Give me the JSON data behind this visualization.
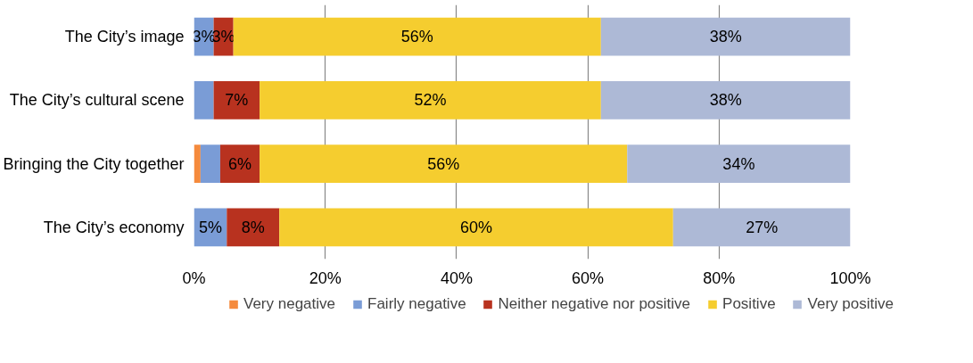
{
  "chart_data": {
    "type": "bar",
    "orientation": "horizontal",
    "stacked": true,
    "categories": [
      "The City’s image",
      "The City’s cultural scene",
      "Bringing the City together",
      "The City’s economy"
    ],
    "series": [
      {
        "name": "Very negative",
        "color": "#f58a3c",
        "values": [
          0,
          0,
          1,
          0
        ],
        "value_labels": [
          null,
          null,
          null,
          null
        ]
      },
      {
        "name": "Fairly negative",
        "color": "#7a9cd6",
        "values": [
          3,
          3,
          3,
          5
        ],
        "value_labels": [
          "3%",
          null,
          null,
          "5%"
        ]
      },
      {
        "name": "Neither negative nor positive",
        "color": "#b8321f",
        "values": [
          3,
          7,
          6,
          8
        ],
        "value_labels": [
          "3%",
          "7%",
          "6%",
          "8%"
        ]
      },
      {
        "name": "Positive",
        "color": "#f5cd2f",
        "values": [
          56,
          52,
          56,
          60
        ],
        "value_labels": [
          "56%",
          "52%",
          "56%",
          "60%"
        ]
      },
      {
        "name": "Very positive",
        "color": "#adb9d6",
        "values": [
          38,
          38,
          34,
          27
        ],
        "value_labels": [
          "38%",
          "38%",
          "34%",
          "27%"
        ]
      }
    ],
    "xlim": [
      0,
      100
    ],
    "xticks": [
      {
        "value": 0,
        "label": "0%"
      },
      {
        "value": 20,
        "label": "20%"
      },
      {
        "value": 40,
        "label": "40%"
      },
      {
        "value": 60,
        "label": "60%"
      },
      {
        "value": 80,
        "label": "80%"
      },
      {
        "value": 100,
        "label": "100%"
      }
    ],
    "grid": "x",
    "legend": "bottom"
  }
}
